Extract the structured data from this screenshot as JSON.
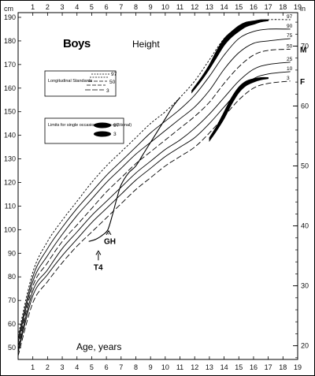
{
  "chart_data": {
    "type": "line",
    "title": "Boys",
    "subtitle": "Height",
    "xlabel": "Age, years",
    "ylabel_left": "cm",
    "ylabel_right": "in",
    "x_ticks": [
      "1",
      "2",
      "3",
      "4",
      "5",
      "6",
      "7",
      "8",
      "9",
      "10",
      "11",
      "12",
      "13",
      "14",
      "15",
      "16",
      "17",
      "18",
      "19"
    ],
    "y_ticks_cm": [
      "50",
      "60",
      "70",
      "80",
      "90",
      "100",
      "110",
      "120",
      "130",
      "140",
      "150",
      "160",
      "170",
      "180",
      "190"
    ],
    "y_ticks_in": [
      "20",
      "30",
      "40",
      "50",
      "60",
      "70"
    ],
    "xlim": [
      0,
      19
    ],
    "ylim": [
      45,
      192
    ],
    "right_markers": [
      {
        "label": "M",
        "cm": 176.5
      },
      {
        "label": "F",
        "cm": 163
      }
    ],
    "legend_longitudinal": {
      "title": "Longitudinal Standards",
      "entries": [
        "97",
        "50",
        "3"
      ]
    },
    "legend_limits": {
      "title": "Limits for single occasions (cross-sectional)",
      "entries": [
        "97",
        "3"
      ]
    },
    "series": [
      {
        "name": "97",
        "style": "short-dash",
        "x": [
          0,
          1,
          2,
          3,
          4,
          5,
          6,
          7,
          8,
          9,
          10,
          11,
          12,
          13,
          14,
          15,
          16,
          17,
          18.5
        ],
        "y": [
          55,
          82,
          95,
          104,
          112,
          120,
          127,
          133,
          139,
          145,
          150,
          156,
          163,
          172,
          181,
          186,
          188,
          189,
          189
        ]
      },
      {
        "name": "90",
        "style": "solid",
        "x": [
          0,
          1,
          2,
          3,
          4,
          5,
          6,
          7,
          8,
          9,
          10,
          11,
          12,
          13,
          14,
          15,
          16,
          17,
          18.5
        ],
        "y": [
          53.5,
          80,
          92,
          101,
          109,
          116,
          123,
          129,
          135,
          141,
          146,
          151,
          157,
          165,
          174,
          181,
          184,
          185,
          185
        ]
      },
      {
        "name": "75",
        "style": "solid",
        "x": [
          0,
          1,
          2,
          3,
          4,
          5,
          6,
          7,
          8,
          9,
          10,
          11,
          12,
          13,
          14,
          15,
          16,
          17,
          18.5
        ],
        "y": [
          52,
          78,
          89,
          98,
          106,
          113,
          120,
          126,
          132,
          137,
          142,
          147,
          152,
          159,
          168,
          175,
          179,
          180,
          181
        ]
      },
      {
        "name": "50",
        "style": "long-dash",
        "x": [
          0,
          1,
          2,
          3,
          4,
          5,
          6,
          7,
          8,
          9,
          10,
          11,
          12,
          13,
          14,
          15,
          16,
          17,
          18.5
        ],
        "y": [
          50.5,
          76,
          86,
          95,
          102,
          109,
          116,
          122,
          128,
          133,
          138,
          143,
          148,
          154,
          162,
          169,
          174,
          176,
          176.5
        ]
      },
      {
        "name": "25",
        "style": "solid",
        "x": [
          0,
          1,
          2,
          3,
          4,
          5,
          6,
          7,
          8,
          9,
          10,
          11,
          12,
          13,
          14,
          15,
          16,
          17,
          18.5
        ],
        "y": [
          49,
          74,
          83,
          92,
          99,
          106,
          112,
          118,
          124,
          129,
          134,
          138,
          143,
          149,
          156,
          163,
          168,
          170,
          171
        ]
      },
      {
        "name": "10",
        "style": "solid",
        "x": [
          0,
          1,
          2,
          3,
          4,
          5,
          6,
          7,
          8,
          9,
          10,
          11,
          12,
          13,
          14,
          15,
          16,
          17,
          18.5
        ],
        "y": [
          48,
          72,
          81,
          89,
          96,
          103,
          109,
          115,
          121,
          126,
          131,
          135,
          139,
          145,
          152,
          159,
          164,
          166,
          167
        ]
      },
      {
        "name": "3",
        "style": "long-dash",
        "x": [
          0,
          1,
          2,
          3,
          4,
          5,
          6,
          7,
          8,
          9,
          10,
          11,
          12,
          13,
          14,
          15,
          16,
          17,
          18.5
        ],
        "y": [
          46.5,
          69,
          78,
          86,
          93,
          99,
          105,
          111,
          117,
          122,
          127,
          131,
          135,
          141,
          148,
          155,
          160,
          162,
          163
        ]
      }
    ],
    "limit_bands": [
      {
        "name": "97",
        "x": [
          11.8,
          12.5,
          13,
          13.5,
          14,
          14.5,
          15,
          15.5,
          16,
          16.5,
          17
        ],
        "y_low": [
          158,
          163.5,
          168,
          173,
          178,
          181.5,
          184,
          186,
          187,
          188,
          188.5
        ],
        "y_high": [
          159,
          165,
          170,
          176,
          181,
          184,
          186.5,
          188,
          188.5,
          189,
          189
        ]
      },
      {
        "name": "3",
        "x": [
          13,
          13.5,
          14,
          14.5,
          15,
          15.5,
          16,
          16.5,
          17
        ],
        "y_low": [
          137.5,
          142,
          147,
          153,
          158,
          161,
          162.5,
          163.5,
          164
        ],
        "y_high": [
          139,
          144,
          150,
          156,
          160.5,
          163,
          164,
          164.5,
          164.5
        ]
      }
    ],
    "patient_curve": {
      "x": [
        4.8,
        5.3,
        5.8,
        6.1,
        6.4,
        6.7,
        7.0,
        7.5,
        8.0,
        8.5,
        9.0,
        9.5,
        10.0,
        10.5,
        11.0
      ],
      "y": [
        95,
        96,
        98,
        100,
        106,
        113,
        119,
        124,
        127,
        132,
        137,
        142,
        147,
        152,
        156
      ]
    },
    "annotations": [
      {
        "text": "GH",
        "x": 6.1,
        "y": 94,
        "arrow_to_y": 99.5
      },
      {
        "text": "T4",
        "x": 5.4,
        "y": 83,
        "arrow_to_y": 91
      }
    ]
  }
}
